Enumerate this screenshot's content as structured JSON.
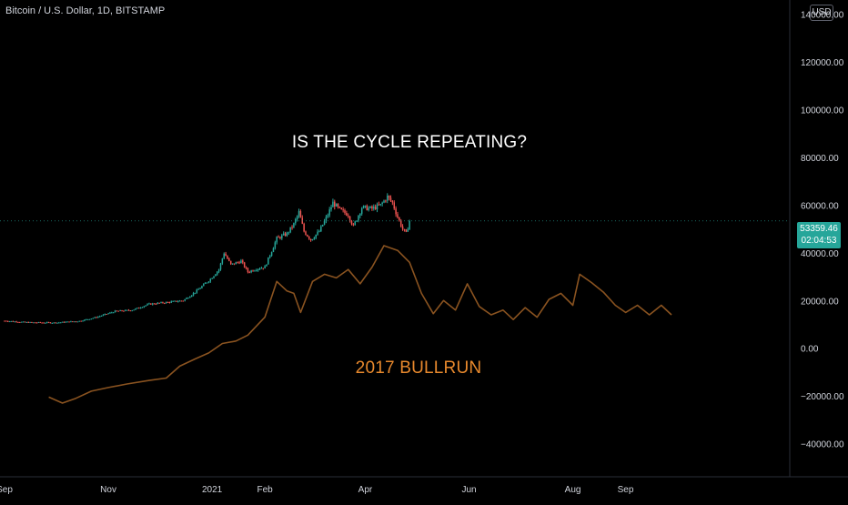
{
  "header": {
    "symbol_title": "Bitcoin / U.S. Dollar, 1D, BITSTAMP",
    "currency": "USD"
  },
  "price_tag": {
    "price": "53359.46",
    "countdown": "02:04:53",
    "color": "#26a69a"
  },
  "annotations": {
    "main": "IS THE CYCLE REPEATING?",
    "overlay": "2017 BULLRUN"
  },
  "colors": {
    "background": "#000000",
    "up_candle": "#26a69a",
    "down_candle": "#ef5350",
    "overlay_line": "#8a5320",
    "overlay_text": "#e8892d",
    "axis_text": "#d1d4dc"
  },
  "chart_data": {
    "type": "candlestick",
    "y_axis": {
      "ticks": [
        -40000,
        -20000,
        0,
        20000,
        40000,
        60000,
        80000,
        100000,
        120000,
        140000
      ],
      "tick_labels": [
        "−40000.00",
        "−20000.00",
        "0.00",
        "20000.00",
        "40000.00",
        "60000.00",
        "80000.00",
        "100000.00",
        "120000.00",
        "140000.00"
      ],
      "ylim": [
        -52000,
        146000
      ]
    },
    "x_axis": {
      "tick_labels": [
        "Sep",
        "Nov",
        "2021",
        "Feb",
        "Apr",
        "Jun",
        "Aug",
        "Sep"
      ]
    },
    "series": [
      {
        "kind": "candles",
        "points": [
          [
            "2020-09-01",
            11500
          ],
          [
            "2020-09-15",
            10800
          ],
          [
            "2020-10-01",
            10700
          ],
          [
            "2020-10-15",
            11400
          ],
          [
            "2020-10-25",
            13000
          ],
          [
            "2020-11-05",
            15500
          ],
          [
            "2020-11-15",
            16000
          ],
          [
            "2020-11-25",
            18500
          ],
          [
            "2020-12-05",
            19200
          ],
          [
            "2020-12-15",
            20000
          ],
          [
            "2020-12-22",
            23500
          ],
          [
            "2020-12-31",
            29000
          ],
          [
            "2021-01-05",
            33000
          ],
          [
            "2021-01-08",
            40000
          ],
          [
            "2021-01-12",
            35000
          ],
          [
            "2021-01-18",
            36500
          ],
          [
            "2021-01-22",
            32000
          ],
          [
            "2021-01-28",
            33500
          ],
          [
            "2021-02-01",
            34000
          ],
          [
            "2021-02-08",
            46000
          ],
          [
            "2021-02-14",
            48000
          ],
          [
            "2021-02-18",
            52000
          ],
          [
            "2021-02-21",
            57000
          ],
          [
            "2021-02-24",
            49000
          ],
          [
            "2021-02-28",
            45500
          ],
          [
            "2021-03-05",
            49000
          ],
          [
            "2021-03-10",
            56000
          ],
          [
            "2021-03-13",
            61000
          ],
          [
            "2021-03-17",
            58000
          ],
          [
            "2021-03-22",
            56000
          ],
          [
            "2021-03-25",
            51000
          ],
          [
            "2021-03-30",
            59000
          ],
          [
            "2021-04-05",
            58500
          ],
          [
            "2021-04-10",
            60000
          ],
          [
            "2021-04-14",
            63500
          ],
          [
            "2021-04-17",
            61000
          ],
          [
            "2021-04-20",
            55000
          ],
          [
            "2021-04-23",
            50000
          ],
          [
            "2021-04-25",
            48000
          ],
          [
            "2021-04-27",
            53359
          ]
        ]
      },
      {
        "kind": "line",
        "name": "2017 BULLRUN",
        "points": [
          [
            "2020-09-27",
            -20500
          ],
          [
            "2020-10-05",
            -23000
          ],
          [
            "2020-10-13",
            -21000
          ],
          [
            "2020-10-22",
            -18000
          ],
          [
            "2020-11-01",
            -16500
          ],
          [
            "2020-11-12",
            -15000
          ],
          [
            "2020-11-25",
            -13500
          ],
          [
            "2020-12-05",
            -12500
          ],
          [
            "2020-12-13",
            -7500
          ],
          [
            "2020-12-22",
            -4500
          ],
          [
            "2020-12-30",
            -2000
          ],
          [
            "2021-01-07",
            2000
          ],
          [
            "2021-01-15",
            3000
          ],
          [
            "2021-01-22",
            5500
          ],
          [
            "2021-02-01",
            13000
          ],
          [
            "2021-02-08",
            28000
          ],
          [
            "2021-02-14",
            24000
          ],
          [
            "2021-02-18",
            23000
          ],
          [
            "2021-02-22",
            15000
          ],
          [
            "2021-03-01",
            28000
          ],
          [
            "2021-03-08",
            31000
          ],
          [
            "2021-03-15",
            29500
          ],
          [
            "2021-03-22",
            33000
          ],
          [
            "2021-03-29",
            27000
          ],
          [
            "2021-04-05",
            34000
          ],
          [
            "2021-04-12",
            43000
          ],
          [
            "2021-04-20",
            41000
          ],
          [
            "2021-04-27",
            36000
          ],
          [
            "2021-05-04",
            23000
          ],
          [
            "2021-05-11",
            14500
          ],
          [
            "2021-05-17",
            20000
          ],
          [
            "2021-05-24",
            16000
          ],
          [
            "2021-05-31",
            27000
          ],
          [
            "2021-06-07",
            17500
          ],
          [
            "2021-06-14",
            14000
          ],
          [
            "2021-06-21",
            16000
          ],
          [
            "2021-06-27",
            12000
          ],
          [
            "2021-07-04",
            17000
          ],
          [
            "2021-07-11",
            13000
          ],
          [
            "2021-07-18",
            20500
          ],
          [
            "2021-07-25",
            23000
          ],
          [
            "2021-08-01",
            18000
          ],
          [
            "2021-08-05",
            31000
          ],
          [
            "2021-08-12",
            27500
          ],
          [
            "2021-08-19",
            23500
          ],
          [
            "2021-08-26",
            18000
          ],
          [
            "2021-09-01",
            15000
          ],
          [
            "2021-09-08",
            18000
          ],
          [
            "2021-09-15",
            14000
          ],
          [
            "2021-09-22",
            18000
          ],
          [
            "2021-09-28",
            14000
          ]
        ]
      }
    ]
  }
}
